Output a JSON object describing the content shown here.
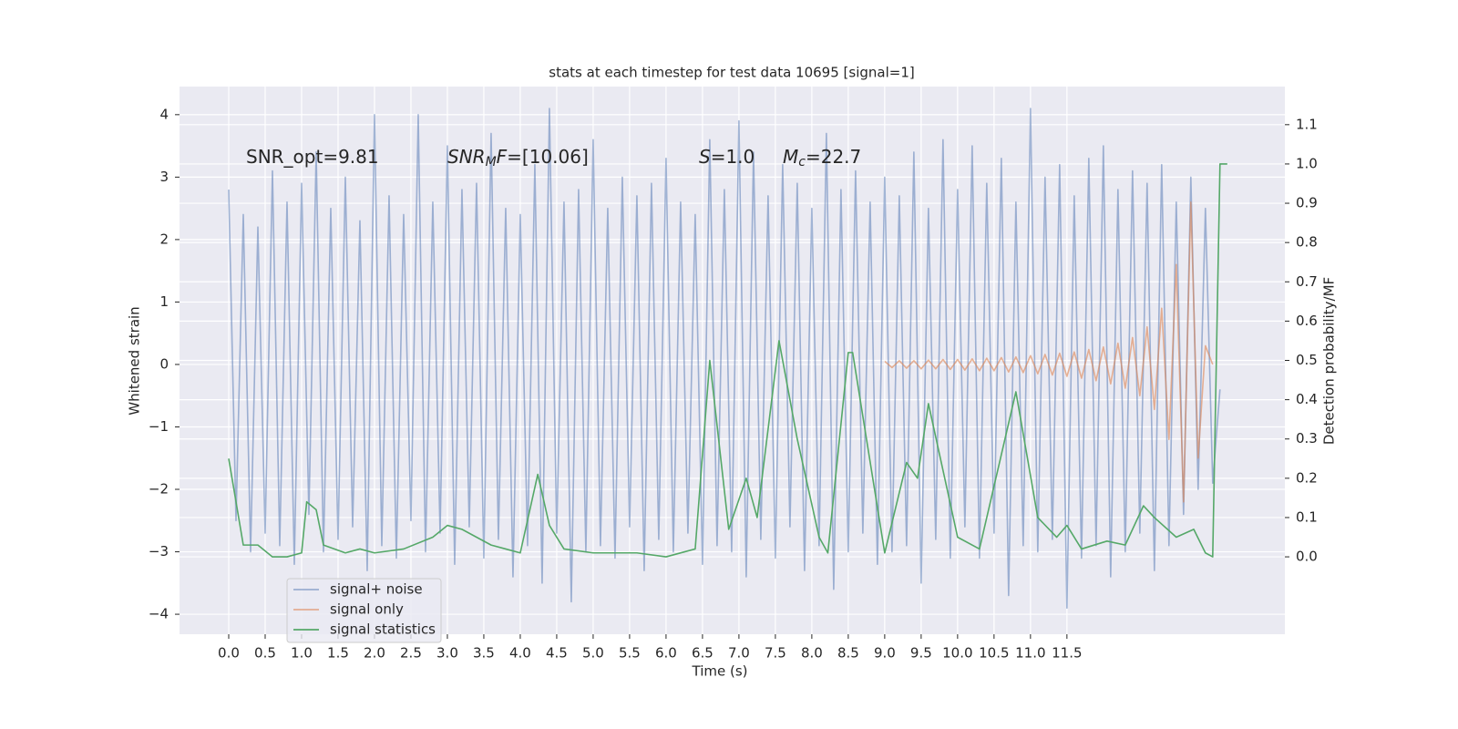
{
  "chart_data": {
    "type": "line",
    "title": "stats at each timestep for test data 10695 [signal=1]",
    "xlabel": "Time (s)",
    "ylabel": "Whitened strain",
    "y2label": "Detection probability/MF",
    "xlim": [
      -0.675,
      14.49
    ],
    "ylim": [
      -4.32,
      4.45
    ],
    "y2lim": [
      -0.197,
      1.197
    ],
    "grid": true,
    "legend": "lower left",
    "xticks": [
      {
        "value": 0,
        "label": "0.0"
      },
      {
        "value": 0.5,
        "label": "0.5"
      },
      {
        "value": 1,
        "label": "1.0"
      },
      {
        "value": 1.5,
        "label": "1.5"
      },
      {
        "value": 2,
        "label": "2.0"
      },
      {
        "value": 2.5,
        "label": "2.5"
      },
      {
        "value": 3,
        "label": "3.0"
      },
      {
        "value": 3.5,
        "label": "3.5"
      },
      {
        "value": 4,
        "label": "4.0"
      },
      {
        "value": 4.5,
        "label": "4.5"
      },
      {
        "value": 5,
        "label": "5.0"
      },
      {
        "value": 5.5,
        "label": "5.5"
      },
      {
        "value": 6,
        "label": "6.0"
      },
      {
        "value": 6.5,
        "label": "6.5"
      },
      {
        "value": 7,
        "label": "7.0"
      },
      {
        "value": 7.5,
        "label": "7.5"
      },
      {
        "value": 8,
        "label": "8.0"
      },
      {
        "value": 8.5,
        "label": "8.5"
      },
      {
        "value": 9,
        "label": "9.0"
      },
      {
        "value": 9.5,
        "label": "9.5"
      },
      {
        "value": 10,
        "label": "10.0"
      },
      {
        "value": 10.5,
        "label": "10.5"
      },
      {
        "value": 11,
        "label": "11.0"
      },
      {
        "value": 11.5,
        "label": "11.5"
      }
    ],
    "yticks": [
      {
        "value": -4,
        "label": "−4"
      },
      {
        "value": -3,
        "label": "−3"
      },
      {
        "value": -2,
        "label": "−2"
      },
      {
        "value": -1,
        "label": "−1"
      },
      0,
      1,
      2,
      3,
      4
    ],
    "y2ticks": [
      {
        "value": 0,
        "label": "0.0"
      },
      {
        "value": 0.1,
        "label": "0.1"
      },
      {
        "value": 0.2,
        "label": "0.2"
      },
      {
        "value": 0.3,
        "label": "0.3"
      },
      {
        "value": 0.4,
        "label": "0.4"
      },
      {
        "value": 0.5,
        "label": "0.5"
      },
      {
        "value": 0.6,
        "label": "0.6"
      },
      {
        "value": 0.7,
        "label": "0.7"
      },
      {
        "value": 0.8,
        "label": "0.8"
      },
      {
        "value": 0.9,
        "label": "0.9"
      },
      {
        "value": 1,
        "label": "1.0"
      },
      {
        "value": 1.1,
        "label": "1.1"
      }
    ],
    "annotations": [
      [
        {
          "text": "SNR_opt=9.81"
        }
      ],
      [
        {
          "text": "SNR",
          "italic": true
        },
        {
          "text": "M",
          "italic": true,
          "sub": true
        },
        {
          "text": "F",
          "italic": true
        },
        {
          "text": "=[10.06]"
        }
      ],
      [
        {
          "text": "S",
          "italic": true
        },
        {
          "text": "=1.0"
        }
      ],
      [
        {
          "text": "M",
          "italic": true
        },
        {
          "text": "c",
          "italic": true,
          "sub": true
        },
        {
          "text": "=22.7"
        }
      ]
    ],
    "series": [
      {
        "name": "signal+ noise",
        "color": "#4c72b0",
        "opacity": 0.5,
        "x0": 0,
        "dx": 0.1,
        "values": [
          2.8,
          -2.5,
          2.4,
          -3.0,
          2.2,
          -2.7,
          3.1,
          -2.9,
          2.6,
          -3.2,
          2.9,
          -2.4,
          3.4,
          -3.0,
          2.5,
          -2.8,
          3.0,
          -2.6,
          2.3,
          -3.3,
          4.0,
          -2.9,
          2.7,
          -3.1,
          2.4,
          -2.5,
          4.0,
          -3.0,
          2.6,
          -2.7,
          3.5,
          -3.2,
          2.8,
          -2.6,
          2.9,
          -3.1,
          3.7,
          -2.8,
          2.5,
          -3.4,
          2.4,
          -2.9,
          3.2,
          -3.5,
          4.1,
          -2.7,
          2.6,
          -3.8,
          2.8,
          -3.0,
          3.6,
          -2.9,
          2.5,
          -3.1,
          3.0,
          -2.6,
          2.7,
          -3.3,
          2.9,
          -2.8,
          3.3,
          -3.0,
          2.6,
          -2.7,
          2.4,
          -3.2,
          3.6,
          -2.9,
          2.8,
          -3.0,
          3.9,
          -3.4,
          3.4,
          -2.8,
          2.7,
          -3.1,
          3.2,
          -2.6,
          2.9,
          -3.3,
          2.5,
          -2.9,
          3.7,
          -3.6,
          2.8,
          -3.0,
          3.1,
          -2.7,
          2.6,
          -3.2,
          3.0,
          -3.0,
          2.7,
          -2.9,
          3.4,
          -3.5,
          2.5,
          -2.8,
          3.6,
          -3.1,
          2.8,
          -2.6,
          3.5,
          -3.1,
          2.9,
          -2.7,
          3.3,
          -3.7,
          2.6,
          -2.9,
          4.1,
          -3.0,
          3.0,
          -2.8,
          3.2,
          -3.9,
          2.7,
          -3.1,
          3.3,
          -2.9,
          3.5,
          -3.4,
          2.8,
          -3.0,
          3.1,
          -2.7,
          2.9,
          -3.3,
          3.2,
          -2.9,
          2.6,
          -2.4,
          3.0,
          -2.0,
          2.5,
          -1.9,
          -0.4
        ]
      },
      {
        "name": "signal only",
        "color": "#dd8452",
        "opacity": 0.6,
        "x0": 9.0,
        "dx": 0.1,
        "values": [
          0.05,
          -0.05,
          0.06,
          -0.06,
          0.06,
          -0.07,
          0.07,
          -0.07,
          0.08,
          -0.08,
          0.08,
          -0.09,
          0.09,
          -0.1,
          0.1,
          -0.1,
          0.11,
          -0.12,
          0.12,
          -0.13,
          0.14,
          -0.15,
          0.16,
          -0.17,
          0.18,
          -0.19,
          0.2,
          -0.22,
          0.24,
          -0.26,
          0.28,
          -0.31,
          0.34,
          -0.38,
          0.43,
          -0.5,
          0.6,
          -0.72,
          0.9,
          -1.2,
          1.6,
          -2.2,
          2.6,
          -1.5,
          0.3,
          0.0
        ]
      },
      {
        "name": "signal statistics",
        "color": "#55a868",
        "opacity": 1,
        "axis": "y2",
        "x": [
          0.0,
          0.2,
          0.4,
          0.6,
          0.8,
          1.0,
          1.07,
          1.2,
          1.3,
          1.6,
          1.8,
          2.0,
          2.4,
          2.8,
          3.0,
          3.2,
          3.6,
          3.8,
          4.0,
          4.24,
          4.4,
          4.6,
          5.0,
          5.6,
          6.0,
          6.4,
          6.6,
          6.86,
          7.1,
          7.25,
          7.55,
          7.8,
          8.1,
          8.22,
          8.5,
          8.56,
          9.0,
          9.3,
          9.45,
          9.6,
          10.0,
          10.3,
          10.8,
          11.1,
          11.36,
          11.5,
          11.7,
          12.05,
          12.3,
          12.55,
          12.7,
          13.0,
          13.24,
          13.4,
          13.5,
          13.6,
          13.7
        ],
        "values": [
          0.25,
          0.03,
          0.03,
          0.0,
          0.0,
          0.01,
          0.14,
          0.12,
          0.03,
          0.01,
          0.02,
          0.01,
          0.02,
          0.05,
          0.08,
          0.07,
          0.03,
          0.02,
          0.01,
          0.21,
          0.08,
          0.02,
          0.01,
          0.01,
          0.0,
          0.02,
          0.5,
          0.07,
          0.2,
          0.1,
          0.55,
          0.3,
          0.05,
          0.01,
          0.52,
          0.52,
          0.01,
          0.24,
          0.2,
          0.39,
          0.05,
          0.02,
          0.42,
          0.1,
          0.05,
          0.08,
          0.02,
          0.04,
          0.03,
          0.13,
          0.1,
          0.05,
          0.07,
          0.01,
          0.0,
          1.0,
          1.0
        ]
      }
    ]
  }
}
